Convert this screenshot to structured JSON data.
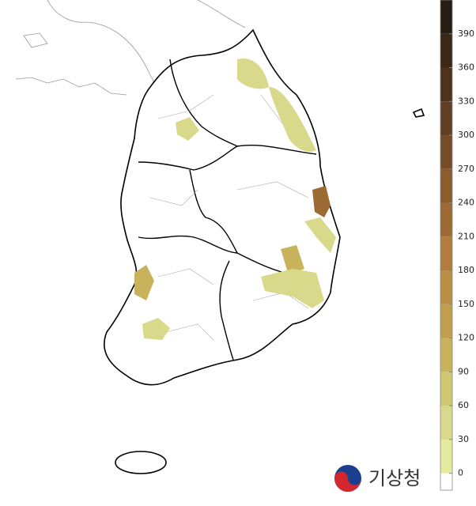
{
  "logo": {
    "text": "기상청"
  },
  "colorbar": {
    "lim": [
      -15,
      420
    ],
    "ticks": [
      0,
      30,
      60,
      90,
      120,
      150,
      180,
      210,
      240,
      270,
      300,
      330,
      360,
      390
    ],
    "colors": [
      "#ffffff",
      "#e5ea9e",
      "#d8d98a",
      "#cfc872",
      "#c8b35c",
      "#c0a04e",
      "#b88f45",
      "#b07d3c",
      "#9c6b34",
      "#8a5c2e",
      "#754c28",
      "#623f22",
      "#4e321c",
      "#3a2716",
      "#251c12"
    ]
  }
}
